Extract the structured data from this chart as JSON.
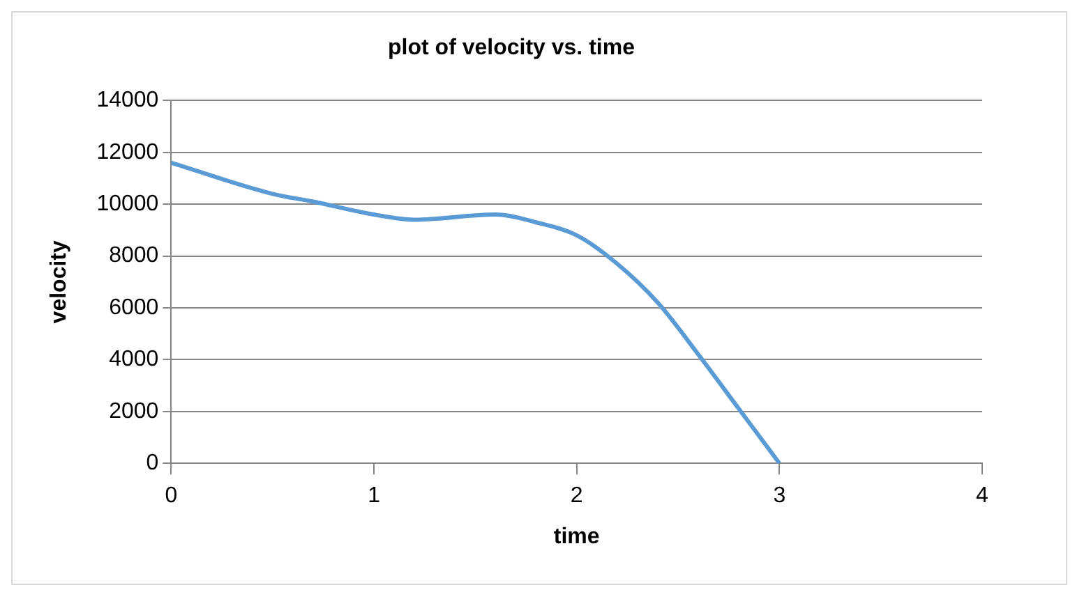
{
  "chart_data": {
    "type": "line",
    "title": "plot of velocity vs. time",
    "xlabel": "time",
    "ylabel": "velocity",
    "series": [
      {
        "color": "#5b9bd5",
        "x": [
          0,
          0.5,
          0.7,
          1,
          1.2,
          1.6,
          1.8,
          2,
          2.2,
          2.4,
          2.6,
          2.8,
          3
        ],
        "values": [
          11600,
          10400,
          10100,
          9600,
          9400,
          9600,
          9300,
          8800,
          7700,
          6200,
          4200,
          2100,
          0
        ]
      }
    ],
    "xlim": [
      0,
      4
    ],
    "xticks": [
      0,
      1,
      2,
      3,
      4
    ],
    "ylim": [
      0,
      14000
    ],
    "yticks": [
      0,
      2000,
      4000,
      6000,
      8000,
      10000,
      12000,
      14000
    ],
    "grid": "y",
    "legend": false,
    "marker": "none",
    "line_style": "solid"
  }
}
